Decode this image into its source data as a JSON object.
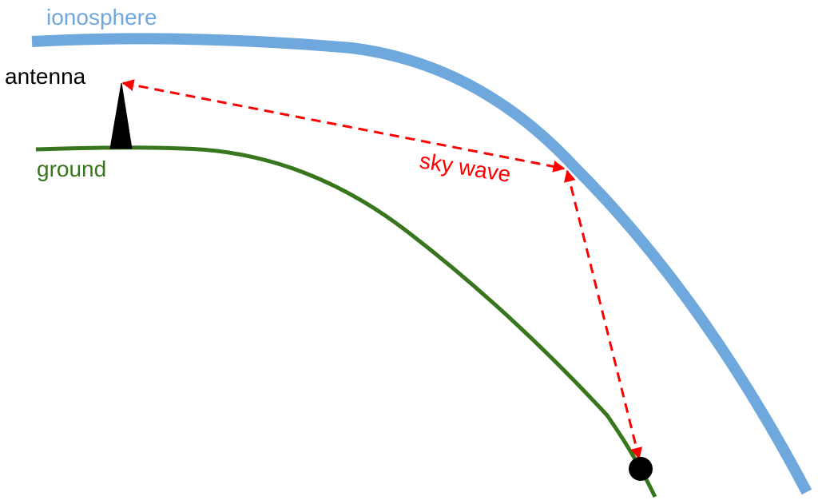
{
  "labels": {
    "ionosphere": "ionosphere",
    "antenna": "antenna",
    "ground": "ground",
    "sky_wave": "sky wave"
  },
  "colors": {
    "ionosphere": "#6fa8dc",
    "ground": "#38761d",
    "sky_wave": "#ff0000",
    "antenna": "#000000",
    "receiver": "#000000",
    "label_default": "#000000"
  }
}
